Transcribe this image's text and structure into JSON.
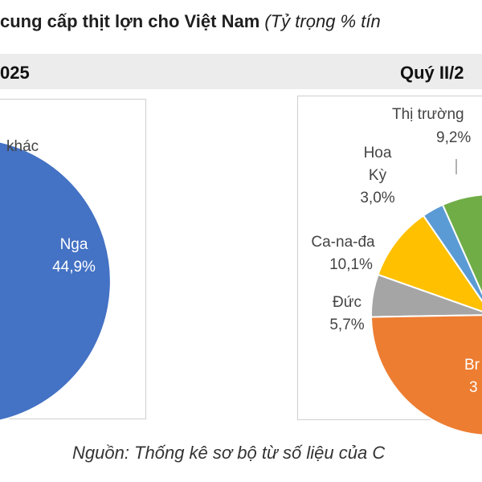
{
  "title": {
    "main": "cung cấp thịt lợn cho Việt Nam",
    "sub": "(Tỷ trọng % tín"
  },
  "periods": {
    "left": "025",
    "right": "Quý II/2"
  },
  "source": "Nguồn: Thống kê sơ bộ từ số liệu của C",
  "chart_data": [
    {
      "type": "pie",
      "period": "025",
      "slices": [
        {
          "label": "Nga",
          "value_label": "44,9%",
          "value": 44.9,
          "color": "#4472C4"
        },
        {
          "label": "",
          "value_label": "",
          "value": null,
          "color": "#ED7D31"
        },
        {
          "label": "khác",
          "value_label": "",
          "value": null,
          "color": "#A5A5A5"
        }
      ]
    },
    {
      "type": "pie",
      "period": "Quý II/2",
      "slices": [
        {
          "label": "Thị trường",
          "value_label": "9,2%",
          "value": 9.2,
          "color": "#70AD47"
        },
        {
          "label": "Hoa Kỳ",
          "label_lines": [
            "Hoa",
            "Kỳ"
          ],
          "value_label": "3,0%",
          "value": 3.0,
          "color": "#5B9BD5"
        },
        {
          "label": "Ca-na-đa",
          "value_label": "10,1%",
          "value": 10.1,
          "color": "#FFC000"
        },
        {
          "label": "Đức",
          "value_label": "5,7%",
          "value": 5.7,
          "color": "#A5A5A5"
        },
        {
          "label": "Br",
          "value_label": "3",
          "value": null,
          "color": "#ED7D31"
        }
      ]
    }
  ]
}
